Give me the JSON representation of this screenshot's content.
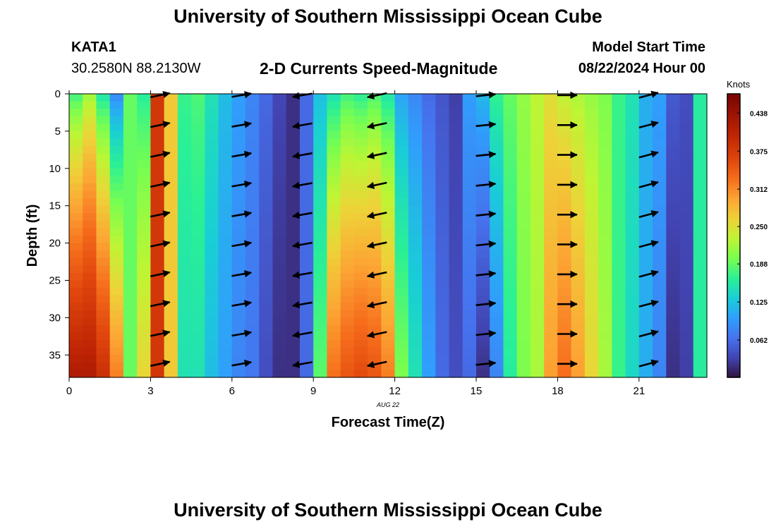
{
  "header": {
    "title": "University of Southern Mississippi Ocean Cube",
    "station_id": "KATA1",
    "coordinates": "30.2580N  88.2130W",
    "chart_title": "2-D Currents Speed-Magnitude",
    "model_start_label": "Model Start Time",
    "model_start_value": "08/22/2024 Hour 00"
  },
  "footer": {
    "title": "University of Southern Mississippi Ocean Cube"
  },
  "chart_data": {
    "type": "heatmap",
    "title": "2-D Currents Speed-Magnitude",
    "xlabel": "Forecast Time(Z)",
    "ylabel": "Depth (ft)",
    "x_sublabel": "AUG 22",
    "xlim": [
      0,
      23.5
    ],
    "ylim": [
      38,
      0
    ],
    "x_ticks": [
      0,
      3,
      6,
      9,
      12,
      15,
      18,
      21
    ],
    "y_ticks": [
      0,
      5,
      10,
      15,
      20,
      25,
      30,
      35
    ],
    "colorbar": {
      "label": "Knots",
      "min": 0,
      "max": 0.47,
      "ticks": [
        "0.062",
        "0.125",
        "0.188",
        "0.250",
        "0.312",
        "0.375",
        "0.438"
      ],
      "tick_values": [
        0.062,
        0.125,
        0.188,
        0.25,
        0.312,
        0.375,
        0.438
      ]
    },
    "hours": [
      0,
      0.5,
      1,
      1.5,
      2,
      2.5,
      3,
      3.5,
      4,
      4.5,
      5,
      5.5,
      6,
      6.5,
      7,
      7.5,
      8,
      8.5,
      9,
      9.5,
      10,
      10.5,
      11,
      11.5,
      12,
      12.5,
      13,
      13.5,
      14,
      14.5,
      15,
      15.5,
      16,
      16.5,
      17,
      17.5,
      18,
      18.5,
      19,
      19.5,
      20,
      20.5,
      21,
      21.5,
      22,
      22.5,
      23
    ],
    "surface_speed": [
      0.17,
      0.21,
      0.15,
      0.08,
      0.19,
      0.16,
      0.38,
      0.27,
      0.17,
      0.18,
      0.15,
      0.12,
      0.1,
      0.08,
      0.06,
      0.035,
      0.02,
      0.06,
      0.12,
      0.145,
      0.17,
      0.16,
      0.175,
      0.15,
      0.1,
      0.08,
      0.06,
      0.045,
      0.03,
      0.1,
      0.12,
      0.17,
      0.19,
      0.21,
      0.23,
      0.25,
      0.23,
      0.22,
      0.21,
      0.2,
      0.17,
      0.15,
      0.11,
      0.1,
      0.05,
      0.04,
      0.16
    ],
    "bottom_speed": [
      0.42,
      0.42,
      0.39,
      0.32,
      0.19,
      0.26,
      0.38,
      0.27,
      0.15,
      0.15,
      0.12,
      0.1,
      0.08,
      0.07,
      0.04,
      0.02,
      0.02,
      0.06,
      0.185,
      0.33,
      0.35,
      0.36,
      0.35,
      0.32,
      0.2,
      0.15,
      0.1,
      0.06,
      0.04,
      0.06,
      0.02,
      0.08,
      0.16,
      0.2,
      0.22,
      0.3,
      0.33,
      0.3,
      0.26,
      0.22,
      0.17,
      0.14,
      0.11,
      0.08,
      0.02,
      0.03,
      0.16
    ],
    "arrow_times": [
      3,
      6,
      8.25,
      11,
      15,
      18,
      21
    ],
    "arrow_depths": [
      0,
      4,
      8,
      12,
      16,
      20,
      24,
      28,
      32,
      36
    ]
  }
}
